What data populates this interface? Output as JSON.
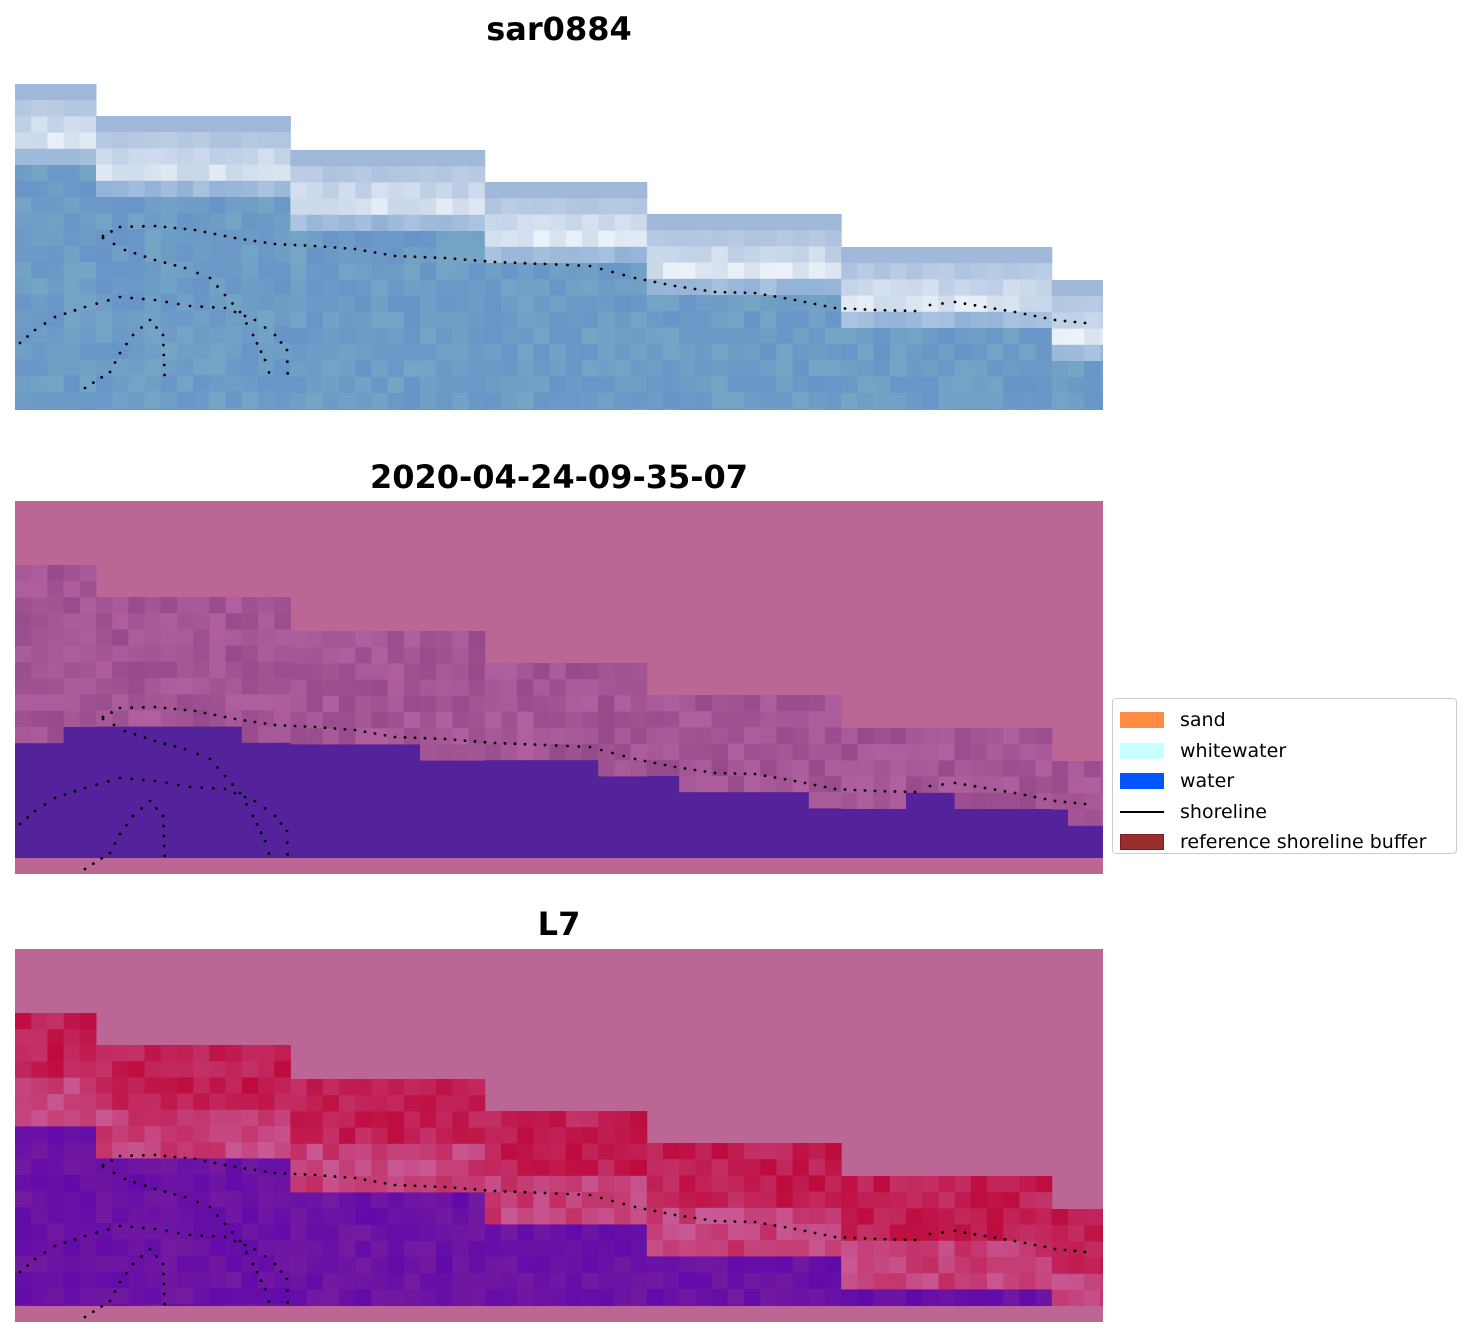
{
  "panels": [
    {
      "title": "sar0884",
      "style": "rgb"
    },
    {
      "title": "2020-04-24-09-35-07",
      "style": "classified"
    },
    {
      "title": "L7",
      "style": "index"
    }
  ],
  "legend": {
    "items": [
      {
        "label": "sand",
        "color": "#ff8c40",
        "kind": "patch"
      },
      {
        "label": "whitewater",
        "color": "#c8ffff",
        "kind": "patch"
      },
      {
        "label": "water",
        "color": "#0055ff",
        "kind": "patch"
      },
      {
        "label": "shoreline",
        "color": "#000000",
        "kind": "line"
      },
      {
        "label": "reference shoreline buffer",
        "color": "#9b2d2d",
        "kind": "patch"
      }
    ]
  },
  "colors": {
    "buffer_overlay": "#bc6696",
    "water_class": "#54239b",
    "shoreline_dots": "#000000"
  }
}
